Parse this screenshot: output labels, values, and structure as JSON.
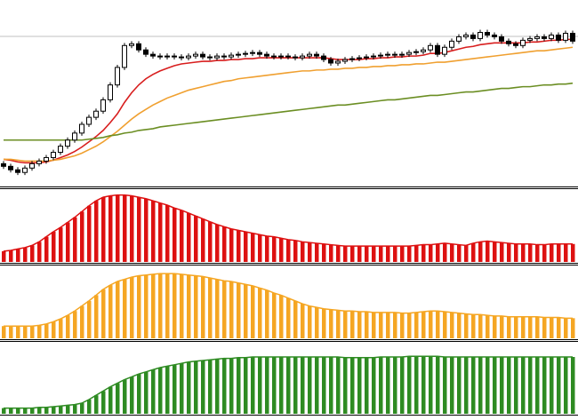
{
  "chart_data": [
    {
      "type": "candlestick",
      "ylim": [
        0,
        210
      ],
      "up_color": "#ffffff",
      "down_color": "#000000",
      "open": [
        25,
        22,
        18,
        15,
        20,
        25,
        28,
        32,
        38,
        45,
        52,
        60,
        70,
        78,
        85,
        98,
        115,
        135,
        160,
        162,
        155,
        150,
        148,
        147,
        148,
        147,
        146,
        148,
        150,
        147,
        146,
        148,
        147,
        149,
        150,
        151,
        152,
        150,
        148,
        147,
        148,
        147,
        146,
        148,
        150,
        148,
        144,
        140,
        142,
        144,
        145,
        146,
        147,
        148,
        149,
        150,
        149,
        150,
        152,
        153,
        155,
        160,
        150,
        158,
        165,
        170,
        172,
        168,
        175,
        172,
        170,
        165,
        162,
        160,
        166,
        168,
        170,
        168,
        172,
        166,
        174
      ],
      "high": [
        28,
        25,
        21,
        23,
        28,
        31,
        35,
        41,
        48,
        55,
        63,
        73,
        81,
        88,
        101,
        118,
        138,
        163,
        165,
        165,
        158,
        153,
        151,
        151,
        151,
        150,
        151,
        153,
        153,
        150,
        151,
        151,
        152,
        153,
        154,
        155,
        155,
        153,
        151,
        151,
        151,
        150,
        151,
        153,
        153,
        151,
        147,
        145,
        147,
        148,
        149,
        150,
        151,
        152,
        153,
        153,
        153,
        155,
        156,
        158,
        163,
        163,
        161,
        168,
        173,
        175,
        175,
        178,
        178,
        175,
        173,
        168,
        165,
        169,
        171,
        173,
        173,
        175,
        175,
        177,
        177
      ],
      "low": [
        19,
        15,
        12,
        12,
        17,
        22,
        25,
        29,
        35,
        42,
        49,
        57,
        67,
        75,
        82,
        95,
        112,
        132,
        157,
        152,
        147,
        145,
        144,
        144,
        144,
        143,
        143,
        145,
        144,
        143,
        143,
        144,
        144,
        146,
        147,
        148,
        147,
        145,
        144,
        144,
        144,
        143,
        143,
        145,
        145,
        141,
        137,
        137,
        139,
        141,
        142,
        143,
        144,
        145,
        146,
        146,
        146,
        147,
        149,
        150,
        152,
        147,
        147,
        155,
        162,
        167,
        165,
        165,
        169,
        167,
        162,
        159,
        157,
        157,
        163,
        165,
        165,
        165,
        163,
        163,
        162
      ],
      "close": [
        22,
        18,
        15,
        20,
        25,
        28,
        32,
        38,
        45,
        52,
        60,
        70,
        78,
        85,
        98,
        115,
        135,
        160,
        162,
        155,
        150,
        148,
        147,
        148,
        147,
        146,
        148,
        150,
        147,
        146,
        148,
        147,
        149,
        150,
        151,
        152,
        150,
        148,
        147,
        148,
        147,
        146,
        148,
        150,
        148,
        144,
        140,
        142,
        144,
        145,
        146,
        147,
        148,
        149,
        150,
        149,
        150,
        152,
        153,
        155,
        160,
        150,
        158,
        165,
        170,
        172,
        168,
        175,
        172,
        170,
        165,
        162,
        160,
        166,
        168,
        170,
        168,
        172,
        166,
        174,
        165
      ],
      "series": [
        {
          "color": "#d81e1e",
          "values": [
            30,
            29,
            27,
            26,
            26,
            26,
            27,
            29,
            32,
            35,
            39,
            44,
            50,
            56,
            63,
            72,
            82,
            95,
            106,
            115,
            122,
            127,
            131,
            134,
            137,
            139,
            140,
            141,
            142,
            142,
            143,
            143,
            144,
            144,
            145,
            145,
            146,
            146,
            146,
            146,
            146,
            146,
            146,
            146,
            146,
            146,
            145,
            144,
            144,
            144,
            144,
            145,
            145,
            146,
            146,
            147,
            147,
            148,
            148,
            149,
            151,
            151,
            152,
            154,
            156,
            158,
            159,
            161,
            162,
            163,
            163,
            163,
            163,
            163,
            164,
            164,
            165,
            166,
            166,
            167,
            167
          ]
        },
        {
          "color": "#f0a030",
          "values": [
            30,
            30,
            29,
            28,
            28,
            28,
            28,
            29,
            30,
            32,
            34,
            37,
            41,
            45,
            50,
            56,
            62,
            69,
            76,
            82,
            87,
            92,
            96,
            100,
            103,
            106,
            109,
            111,
            113,
            115,
            117,
            119,
            120,
            122,
            123,
            124,
            125,
            126,
            127,
            128,
            129,
            130,
            131,
            131,
            132,
            132,
            133,
            133,
            134,
            134,
            135,
            135,
            136,
            136,
            137,
            137,
            138,
            138,
            139,
            139,
            140,
            141,
            141,
            142,
            143,
            144,
            145,
            146,
            147,
            148,
            149,
            150,
            151,
            152,
            153,
            154,
            154,
            155,
            156,
            157,
            158
          ]
        },
        {
          "color": "#6b8e23",
          "values": [
            52,
            52,
            52,
            52,
            52,
            52,
            52,
            52,
            52,
            52,
            52,
            52,
            53,
            54,
            55,
            57,
            58,
            60,
            61,
            63,
            64,
            65,
            67,
            68,
            69,
            70,
            71,
            72,
            73,
            74,
            75,
            76,
            77,
            78,
            79,
            80,
            81,
            82,
            83,
            84,
            85,
            86,
            87,
            88,
            89,
            90,
            91,
            92,
            92,
            93,
            94,
            95,
            96,
            97,
            98,
            98,
            99,
            100,
            101,
            102,
            103,
            103,
            104,
            105,
            106,
            107,
            107,
            108,
            109,
            110,
            111,
            111,
            112,
            113,
            113,
            114,
            115,
            115,
            116,
            116,
            117
          ]
        }
      ]
    },
    {
      "type": "bar",
      "ylim": [
        0,
        100
      ],
      "color": "#dd1111",
      "values": [
        15,
        16,
        18,
        20,
        23,
        28,
        35,
        42,
        48,
        55,
        62,
        70,
        78,
        85,
        90,
        92,
        93,
        93,
        92,
        90,
        88,
        85,
        82,
        79,
        75,
        72,
        68,
        64,
        60,
        56,
        52,
        49,
        46,
        44,
        42,
        40,
        38,
        36,
        35,
        33,
        31,
        30,
        28,
        27,
        26,
        25,
        24,
        23,
        22,
        22,
        22,
        22,
        22,
        22,
        22,
        22,
        22,
        22,
        23,
        24,
        24,
        25,
        26,
        25,
        24,
        23,
        26,
        28,
        29,
        28,
        27,
        26,
        25,
        25,
        25,
        24,
        24,
        25,
        25,
        25,
        25
      ]
    },
    {
      "type": "bar",
      "ylim": [
        0,
        100
      ],
      "color": "#f5a623",
      "values": [
        17,
        17,
        17,
        17,
        17,
        18,
        20,
        23,
        27,
        32,
        38,
        45,
        52,
        60,
        68,
        74,
        79,
        82,
        85,
        87,
        88,
        89,
        90,
        90,
        90,
        89,
        88,
        87,
        86,
        84,
        82,
        80,
        79,
        77,
        75,
        73,
        70,
        67,
        63,
        60,
        56,
        52,
        48,
        45,
        43,
        41,
        40,
        39,
        38,
        38,
        37,
        37,
        36,
        36,
        36,
        36,
        35,
        35,
        36,
        37,
        38,
        38,
        37,
        36,
        35,
        34,
        33,
        33,
        32,
        31,
        31,
        30,
        30,
        30,
        30,
        30,
        29,
        29,
        29,
        28,
        28
      ]
    },
    {
      "type": "bar",
      "ylim": [
        0,
        100
      ],
      "color": "#2e8b22",
      "values": [
        8,
        8,
        8,
        8,
        8,
        9,
        9,
        10,
        11,
        12,
        13,
        15,
        20,
        26,
        32,
        38,
        43,
        48,
        52,
        56,
        59,
        62,
        65,
        67,
        69,
        71,
        73,
        74,
        75,
        76,
        77,
        78,
        78,
        79,
        79,
        80,
        80,
        80,
        80,
        80,
        80,
        80,
        80,
        80,
        80,
        80,
        80,
        80,
        79,
        79,
        79,
        79,
        79,
        80,
        80,
        80,
        80,
        81,
        81,
        81,
        81,
        81,
        80,
        80,
        80,
        80,
        80,
        80,
        80,
        80,
        80,
        80,
        80,
        80,
        80,
        80,
        80,
        80,
        80,
        80,
        80
      ]
    }
  ]
}
